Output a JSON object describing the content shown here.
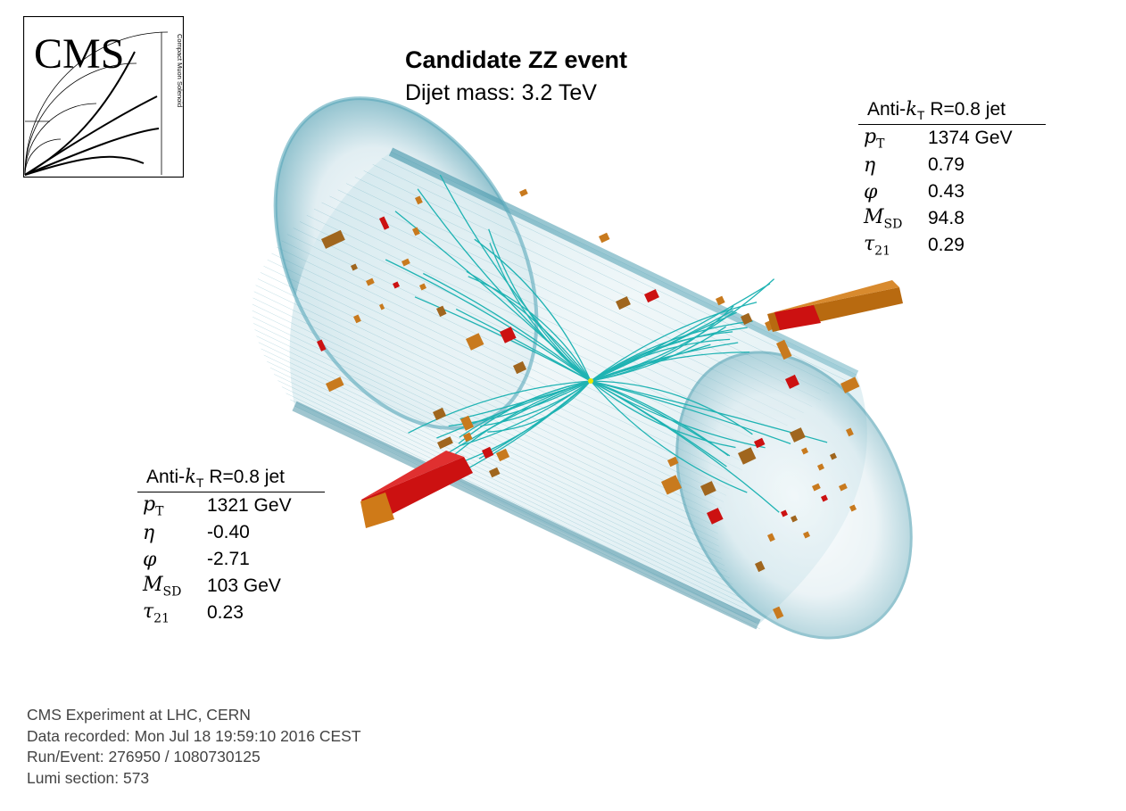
{
  "logo": {
    "text": "CMS",
    "side_text": "Compact Muon Solenoid"
  },
  "title": "Candidate ZZ event",
  "subtitle": "Dijet mass: 3.2 TeV",
  "jets": [
    {
      "header_prefix": "Anti-",
      "header_k": "k",
      "header_sub": "T",
      "header_suffix": " R=0.8 jet",
      "rows": [
        {
          "sym": "p",
          "sub": "T",
          "value": "1374 GeV"
        },
        {
          "sym": "η",
          "sub": "",
          "value": "0.79"
        },
        {
          "sym": "φ",
          "sub": "",
          "value": "0.43"
        },
        {
          "sym": "M",
          "sub": "SD",
          "value": "94.8"
        },
        {
          "sym": "τ",
          "sub": "21",
          "value": "0.29"
        }
      ]
    },
    {
      "header_prefix": "Anti-",
      "header_k": "k",
      "header_sub": "T",
      "header_suffix": " R=0.8 jet",
      "rows": [
        {
          "sym": "p",
          "sub": "T",
          "value": "1321 GeV"
        },
        {
          "sym": "η",
          "sub": "",
          "value": "-0.40"
        },
        {
          "sym": "φ",
          "sub": "",
          "value": "-2.71"
        },
        {
          "sym": "M",
          "sub": "SD",
          "value": "103 GeV"
        },
        {
          "sym": "τ",
          "sub": "21",
          "value": "0.23"
        }
      ]
    }
  ],
  "footer": {
    "line1": "CMS Experiment at LHC, CERN",
    "line2": "Data recorded: Mon Jul 18 19:59:10 2016 CEST",
    "line3": "Run/Event: 276950 / 1080730125",
    "line4": "Lumi section: 573"
  },
  "colors": {
    "track": "#1fb3b3",
    "calo_orange": "#c87a1e",
    "calo_red": "#cc1111",
    "detector_edge": "#2a7f95"
  }
}
